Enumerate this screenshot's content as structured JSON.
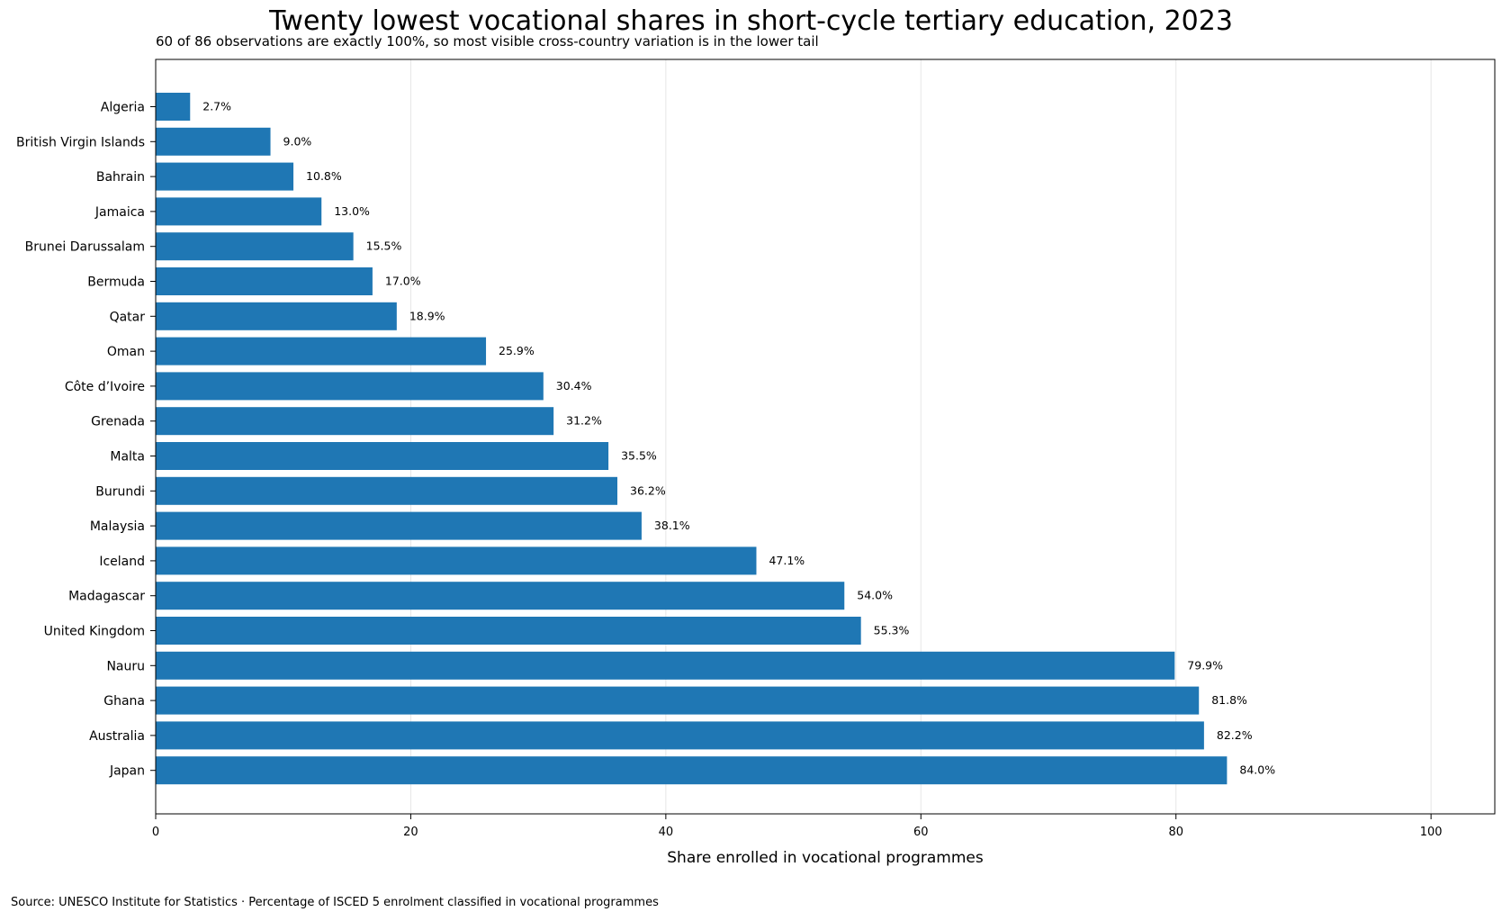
{
  "chart_data": {
    "type": "bar",
    "orientation": "horizontal",
    "title": "Twenty lowest vocational shares in short-cycle tertiary education, 2023",
    "subtitle": "60 of 86 observations are exactly 100%, so most visible cross-country variation is in the lower tail",
    "xlabel": "Share enrolled in vocational programmes",
    "ylabel": "",
    "xlim": [
      0,
      105
    ],
    "xticks": [
      0,
      20,
      40,
      60,
      80,
      100
    ],
    "grid": "vertical",
    "bar_color": "#1f77b4",
    "categories": [
      "Algeria",
      "British Virgin Islands",
      "Bahrain",
      "Jamaica",
      "Brunei Darussalam",
      "Bermuda",
      "Qatar",
      "Oman",
      "Côte d’Ivoire",
      "Grenada",
      "Malta",
      "Burundi",
      "Malaysia",
      "Iceland",
      "Madagascar",
      "United Kingdom",
      "Nauru",
      "Ghana",
      "Australia",
      "Japan"
    ],
    "values": [
      2.7,
      9.0,
      10.8,
      13.0,
      15.5,
      17.0,
      18.9,
      25.9,
      30.4,
      31.2,
      35.5,
      36.2,
      38.1,
      47.1,
      54.0,
      55.3,
      79.9,
      81.8,
      82.2,
      84.0
    ],
    "value_labels": [
      "2.7%",
      "9.0%",
      "10.8%",
      "13.0%",
      "15.5%",
      "17.0%",
      "18.9%",
      "25.9%",
      "30.4%",
      "31.2%",
      "35.5%",
      "36.2%",
      "38.1%",
      "47.1%",
      "54.0%",
      "55.3%",
      "79.9%",
      "81.8%",
      "82.2%",
      "84.0%"
    ],
    "source": "Source: UNESCO Institute for Statistics · Percentage of ISCED 5 enrolment classified in vocational programmes"
  }
}
